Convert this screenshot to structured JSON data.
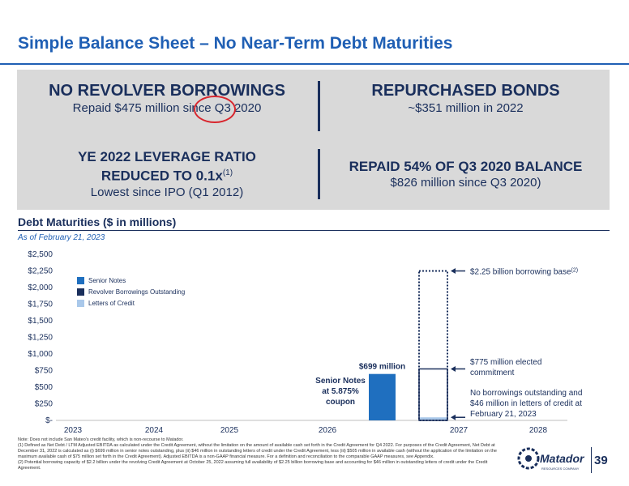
{
  "title": "Simple Balance Sheet – No Near-Term Debt Maturities",
  "panel": {
    "top_left": {
      "heading": "NO REVOLVER BORROWINGS",
      "sub": "Repaid $475 million since Q3 2020"
    },
    "top_right": {
      "heading": "REPURCHASED BONDS",
      "sub": "~$351 million in 2022"
    },
    "bottom_left": {
      "heading_line1": "YE 2022 LEVERAGE RATIO",
      "heading_line2": "REDUCED TO 0.1x",
      "footnote_ref": "(1)",
      "sub": "Lowest since IPO (Q1 2012)"
    },
    "bottom_right": {
      "heading": "REPAID 54% OF Q3 2020 BALANCE",
      "sub": "$826 million since Q3 2020)"
    }
  },
  "chart_heading": "Debt Maturities ($ in millions)",
  "chart_subheading": "As of February 21, 2023",
  "chart_data": {
    "type": "bar",
    "categories": [
      "2023",
      "2024",
      "2025",
      "2026",
      "2027",
      "2028"
    ],
    "series": [
      {
        "name": "Senior Notes",
        "color": "#1f6fbf",
        "values": [
          0,
          0,
          0,
          0,
          699,
          0
        ]
      },
      {
        "name": "Revolver Borrowings Outstanding",
        "color": "#1a2f5c",
        "values": [
          0,
          0,
          0,
          0,
          0,
          0
        ]
      },
      {
        "name": "Letters of Credit",
        "color": "#a9c8ea",
        "values": [
          0,
          0,
          0,
          0,
          46,
          0
        ]
      }
    ],
    "outlines": [
      {
        "category": "2027",
        "elected_commitment": 775,
        "borrowing_base": 2250
      }
    ],
    "yticks": [
      "$-",
      "$250",
      "$500",
      "$750",
      "$1,000",
      "$1,250",
      "$1,500",
      "$1,750",
      "$2,000",
      "$2,250",
      "$2,500"
    ],
    "ylim": [
      0,
      2500
    ],
    "annotations": {
      "bar_value": "$699 million",
      "senior_notes_line1": "Senior Notes",
      "senior_notes_line2": "at 5.875%",
      "senior_notes_line3": "coupon",
      "borrowing_base": "$2.25 billion borrowing base",
      "borrowing_base_ref": "(2)",
      "elected_line1": "$775 million elected",
      "elected_line2": "commitment",
      "loc_line1": "No borrowings outstanding and",
      "loc_line2": "$46 million in letters of credit at",
      "loc_line3": "February 21, 2023"
    }
  },
  "footnotes": {
    "note": "Note: Does not include San Mateo's credit facility, which is non-recourse to Matador.",
    "n1": "(1)   Defined as Net Debt / LTM Adjusted EBITDA as calculated under the Credit Agreement, without the limitation on the amount of available cash set forth in the Credit Agreement for Q4 2022. For purposes of the Credit Agreement, Net Debt at December 31, 2022 is calculated as (i) $699 million in senior notes outstanding, plus (ii) $46 million in outstanding letters of credit under the Credit Agreement, less (iii) $505 million in available cash (without the application of the limitation on the maximum available cash of $75 million set forth in the Credit Agreement). Adjusted EBITDA is a non-GAAP financial measure. For a definition and reconciliation to the comparable GAAP measures, see Appendix.",
    "n2": "(2)   Potential borrowing capacity of $2.2 billion under the revolving Credit Agreement at October 25, 2022 assuming full availability of $2.25 billion borrowing base and accounting for $46 million in outstanding letters of credit under the Credit Agreement."
  },
  "logo": {
    "name": "Matador",
    "tagline": "RESOURCES COMPANY"
  },
  "page_number": "39"
}
